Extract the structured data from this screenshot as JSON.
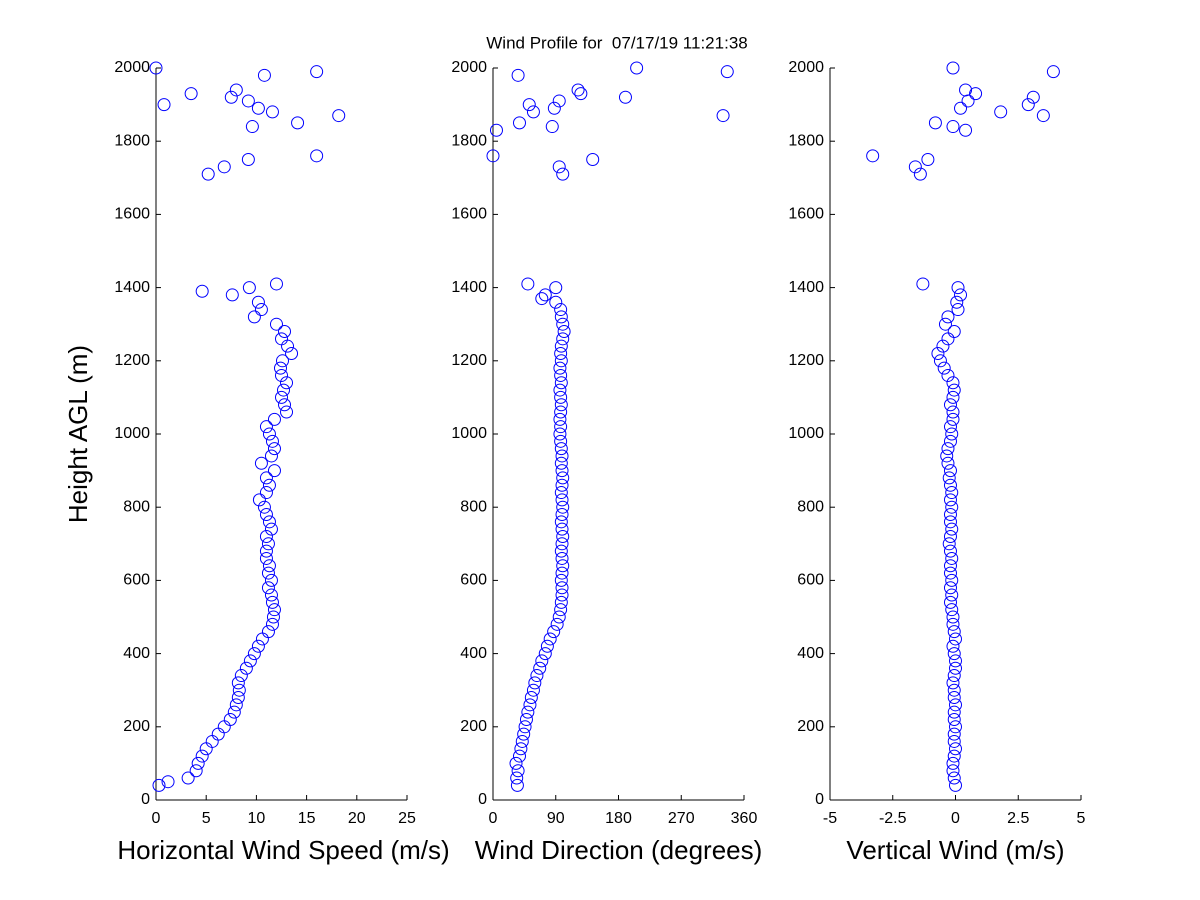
{
  "chart_data": [
    {
      "type": "scatter",
      "title": "Wind Profile for  07/17/19 11:21:38",
      "xlabel": "Horizontal Wind Speed (m/s)",
      "ylabel": "Height AGL (m)",
      "color": "#0000ff",
      "xlim": [
        0,
        25
      ],
      "xticks": [
        0,
        5,
        10,
        15,
        20,
        25
      ],
      "ylim": [
        0,
        2000
      ],
      "yticks": [
        0,
        200,
        400,
        600,
        800,
        1000,
        1200,
        1400,
        1600,
        1800,
        2000
      ],
      "x": [
        0.3,
        3.2,
        4,
        4.2,
        4.6,
        5,
        5.6,
        6.2,
        6.8,
        7.4,
        7.8,
        8,
        8.2,
        8.3,
        8.2,
        8.5,
        9,
        9.4,
        9.8,
        10.2,
        10.6,
        11.2,
        11.6,
        11.7,
        11.8,
        11.6,
        11.5,
        11.2,
        11.5,
        11.2,
        11.3,
        11,
        11,
        11.2,
        11,
        11.5,
        11.3,
        11,
        10.8,
        10.3,
        11,
        11.3,
        11,
        11.8,
        10.5,
        11.5,
        11.8,
        11.6,
        11.3,
        11,
        11.8,
        13,
        12.8,
        12.5,
        12.7,
        13,
        12.5,
        12.4,
        12.6,
        13.5,
        13.1,
        12.5,
        12.8,
        12,
        9.8,
        10.5,
        10.2,
        7.6,
        9.3,
        1.2,
        4.6,
        12,
        0,
        0.8,
        3.5,
        7.5,
        8,
        9.2,
        10.2,
        10.8,
        11.6,
        16,
        9.6,
        14.1,
        18.2,
        16,
        9.2,
        6.8,
        5.2
      ],
      "y": [
        40,
        60,
        80,
        100,
        120,
        140,
        160,
        180,
        200,
        220,
        240,
        260,
        280,
        300,
        320,
        340,
        360,
        380,
        400,
        420,
        440,
        460,
        480,
        500,
        520,
        540,
        560,
        580,
        600,
        620,
        640,
        660,
        680,
        700,
        720,
        740,
        760,
        780,
        800,
        820,
        840,
        860,
        880,
        900,
        920,
        940,
        960,
        980,
        1000,
        1020,
        1040,
        1060,
        1080,
        1100,
        1120,
        1140,
        1160,
        1180,
        1200,
        1220,
        1240,
        1260,
        1280,
        1300,
        1320,
        1340,
        1360,
        1380,
        1400,
        50,
        1390,
        1410,
        2000,
        1900,
        1930,
        1920,
        1940,
        1910,
        1890,
        1980,
        1880,
        1990,
        1840,
        1850,
        1870,
        1760,
        1750,
        1730,
        1710
      ]
    },
    {
      "type": "scatter",
      "xlabel": "Wind Direction (degrees)",
      "color": "#0000ff",
      "xlim": [
        0,
        360
      ],
      "xticks": [
        0,
        90,
        180,
        270,
        360
      ],
      "ylim": [
        0,
        2000
      ],
      "yticks": [
        0,
        200,
        400,
        600,
        800,
        1000,
        1200,
        1400,
        1600,
        1800,
        2000
      ],
      "x": [
        35,
        34,
        36,
        33,
        38,
        40,
        42,
        44,
        46,
        48,
        50,
        53,
        55,
        58,
        60,
        63,
        67,
        70,
        75,
        78,
        82,
        87,
        92,
        95,
        97,
        98,
        99,
        99,
        98,
        99,
        100,
        99,
        98,
        99,
        100,
        99,
        98,
        99,
        100,
        99,
        98,
        99,
        100,
        99,
        98,
        99,
        98,
        97,
        96,
        97,
        96,
        97,
        98,
        97,
        96,
        98,
        97,
        96,
        98,
        97,
        98,
        100,
        102,
        100,
        98,
        97,
        90,
        75,
        90,
        70,
        50,
        0,
        5,
        36,
        38,
        52,
        58,
        85,
        88,
        95,
        100,
        95,
        122,
        126,
        143,
        190,
        206,
        330,
        336
      ],
      "y": [
        40,
        60,
        80,
        100,
        120,
        140,
        160,
        180,
        200,
        220,
        240,
        260,
        280,
        300,
        320,
        340,
        360,
        380,
        400,
        420,
        440,
        460,
        480,
        500,
        520,
        540,
        560,
        580,
        600,
        620,
        640,
        660,
        680,
        700,
        720,
        740,
        760,
        780,
        800,
        820,
        840,
        860,
        880,
        900,
        920,
        940,
        960,
        980,
        1000,
        1020,
        1040,
        1060,
        1080,
        1100,
        1120,
        1140,
        1160,
        1180,
        1200,
        1220,
        1240,
        1260,
        1280,
        1300,
        1320,
        1340,
        1360,
        1380,
        1400,
        1370,
        1410,
        1760,
        1830,
        1980,
        1850,
        1900,
        1880,
        1840,
        1890,
        1730,
        1710,
        1910,
        1940,
        1930,
        1750,
        1920,
        2000,
        1870,
        1990
      ]
    },
    {
      "type": "scatter",
      "xlabel": "Vertical Wind (m/s)",
      "color": "#0000ff",
      "xlim": [
        -5,
        5
      ],
      "xticks": [
        -5,
        -2.5,
        0,
        2.5,
        5
      ],
      "ylim": [
        0,
        2000
      ],
      "yticks": [
        0,
        200,
        400,
        600,
        800,
        1000,
        1200,
        1400,
        1600,
        1800,
        2000
      ],
      "x": [
        0,
        -0.05,
        -0.1,
        -0.1,
        -0.05,
        0,
        -0.05,
        -0.05,
        0,
        -0.05,
        -0.05,
        0,
        -0.05,
        -0.05,
        -0.1,
        -0.05,
        0,
        0,
        -0.05,
        -0.1,
        0,
        -0.05,
        -0.1,
        -0.1,
        -0.15,
        -0.2,
        -0.15,
        -0.2,
        -0.15,
        -0.2,
        -0.2,
        -0.15,
        -0.2,
        -0.25,
        -0.2,
        -0.15,
        -0.2,
        -0.2,
        -0.15,
        -0.2,
        -0.15,
        -0.2,
        -0.25,
        -0.2,
        -0.3,
        -0.35,
        -0.3,
        -0.2,
        -0.15,
        -0.2,
        -0.1,
        -0.1,
        -0.2,
        -0.1,
        -0.05,
        -0.1,
        -0.3,
        -0.45,
        -0.6,
        -0.7,
        -0.5,
        -0.3,
        -0.05,
        -0.4,
        -0.3,
        0.1,
        0.05,
        0.2,
        0.1,
        -1.3,
        -3.3,
        -1.6,
        -1.4,
        -1.1,
        -0.8,
        -0.1,
        0.2,
        0.4,
        0.4,
        0.5,
        0.8,
        -0.1,
        1.8,
        2.9,
        3.1,
        3.5,
        3.9
      ],
      "y": [
        40,
        60,
        80,
        100,
        120,
        140,
        160,
        180,
        200,
        220,
        240,
        260,
        280,
        300,
        320,
        340,
        360,
        380,
        400,
        420,
        440,
        460,
        480,
        500,
        520,
        540,
        560,
        580,
        600,
        620,
        640,
        660,
        680,
        700,
        720,
        740,
        760,
        780,
        800,
        820,
        840,
        860,
        880,
        900,
        920,
        940,
        960,
        980,
        1000,
        1020,
        1040,
        1060,
        1080,
        1100,
        1120,
        1140,
        1160,
        1180,
        1200,
        1220,
        1240,
        1260,
        1280,
        1300,
        1320,
        1340,
        1360,
        1380,
        1400,
        1410,
        1760,
        1730,
        1710,
        1750,
        1850,
        2000,
        1890,
        1940,
        1830,
        1910,
        1930,
        1840,
        1880,
        1900,
        1920,
        1870,
        1990
      ]
    }
  ]
}
